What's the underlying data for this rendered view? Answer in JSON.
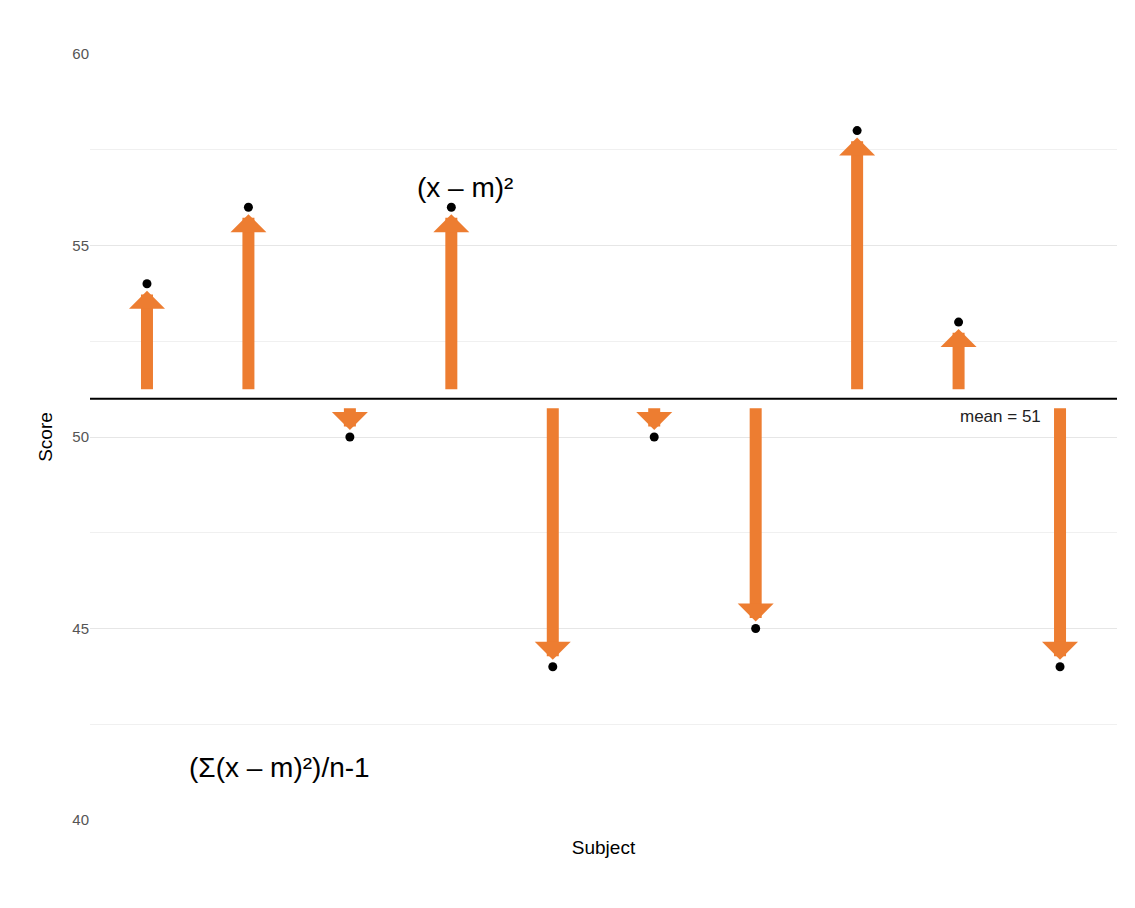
{
  "chart_data": {
    "type": "scatter",
    "categories": [
      null,
      null,
      null,
      null,
      null,
      null,
      null,
      null,
      null,
      null
    ],
    "values": [
      54,
      56,
      50,
      56,
      44,
      50,
      45,
      58,
      53,
      44
    ],
    "color": "#000000",
    "mean": {
      "value": 51,
      "label": "mean = 51",
      "color": "#000000"
    },
    "deviations": {
      "color": "#ED7D31"
    },
    "annotations": [
      "(x – m)²",
      "(Σ(x – m)²)/n-1"
    ],
    "x_label": "Subject",
    "y_label": "Score",
    "ylim": [
      40,
      60
    ],
    "yticks": [
      40,
      45,
      50,
      55,
      60
    ],
    "grid": true,
    "tick_labels": "y"
  }
}
